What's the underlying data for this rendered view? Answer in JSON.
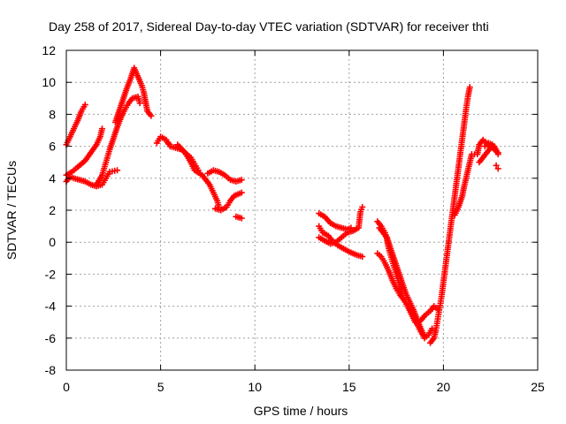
{
  "chart_data": {
    "type": "scatter",
    "title": "Day 258 of 2017, Sidereal Day-to-day VTEC variation (SDTVAR) for receiver thti",
    "xlabel": "GPS time / hours",
    "ylabel": "SDTVAR / TECUs",
    "xlim": [
      0,
      25
    ],
    "ylim": [
      -8,
      12
    ],
    "xticks": [
      "0",
      "5",
      "10",
      "15",
      "20",
      "25"
    ],
    "yticks": [
      "-8",
      "-6",
      "-4",
      "-2",
      "0",
      "2",
      "4",
      "6",
      "8",
      "10",
      "12"
    ],
    "grid": true,
    "marker": "+",
    "color": "#ff0000",
    "series": [
      {
        "points": [
          [
            0.0,
            6.1
          ],
          [
            0.2,
            6.6
          ],
          [
            0.4,
            7.1
          ],
          [
            0.6,
            7.6
          ],
          [
            0.8,
            8.2
          ],
          [
            1.0,
            8.6
          ],
          [
            0.0,
            4.2
          ],
          [
            0.3,
            4.4
          ],
          [
            0.6,
            4.7
          ],
          [
            1.0,
            5.1
          ],
          [
            1.3,
            5.6
          ],
          [
            1.6,
            6.1
          ],
          [
            1.8,
            6.6
          ],
          [
            1.9,
            7.1
          ],
          [
            0.0,
            3.8
          ],
          [
            0.2,
            4.1
          ],
          [
            0.4,
            4.0
          ],
          [
            0.7,
            3.9
          ],
          [
            1.0,
            3.8
          ],
          [
            1.3,
            3.6
          ],
          [
            1.6,
            3.5
          ],
          [
            1.9,
            3.6
          ],
          [
            2.1,
            4.0
          ],
          [
            2.3,
            4.4
          ],
          [
            2.7,
            4.5
          ],
          [
            1.6,
            3.6
          ],
          [
            1.9,
            4.2
          ],
          [
            2.1,
            5.0
          ],
          [
            2.3,
            5.8
          ],
          [
            2.5,
            6.5
          ],
          [
            2.7,
            7.2
          ],
          [
            2.9,
            7.8
          ],
          [
            3.1,
            8.3
          ],
          [
            3.3,
            8.7
          ],
          [
            3.5,
            9.0
          ],
          [
            3.8,
            9.1
          ],
          [
            3.9,
            8.7
          ],
          [
            2.6,
            7.5
          ],
          [
            2.8,
            8.2
          ],
          [
            3.0,
            8.9
          ],
          [
            3.2,
            9.6
          ],
          [
            3.4,
            10.2
          ],
          [
            3.6,
            10.9
          ],
          [
            4.0,
            9.8
          ],
          [
            4.1,
            9.4
          ],
          [
            4.2,
            8.8
          ],
          [
            4.3,
            8.2
          ],
          [
            4.5,
            7.9
          ],
          [
            4.8,
            6.2
          ],
          [
            5.0,
            6.6
          ],
          [
            5.3,
            6.4
          ],
          [
            5.5,
            6.0
          ],
          [
            5.8,
            5.9
          ],
          [
            6.1,
            5.8
          ],
          [
            6.4,
            5.5
          ],
          [
            6.6,
            5.3
          ],
          [
            6.8,
            4.9
          ],
          [
            7.0,
            4.5
          ],
          [
            5.4,
            6.2
          ],
          [
            5.9,
            6.1
          ],
          [
            6.3,
            5.6
          ],
          [
            6.6,
            5.0
          ],
          [
            6.8,
            4.5
          ],
          [
            7.2,
            4.2
          ],
          [
            7.4,
            3.9
          ],
          [
            7.6,
            3.6
          ],
          [
            7.8,
            3.1
          ],
          [
            8.0,
            2.6
          ],
          [
            8.1,
            2.2
          ],
          [
            7.5,
            4.3
          ],
          [
            7.8,
            4.5
          ],
          [
            8.1,
            4.4
          ],
          [
            8.4,
            4.2
          ],
          [
            8.7,
            3.9
          ],
          [
            9.0,
            3.8
          ],
          [
            9.3,
            3.9
          ],
          [
            7.9,
            2.1
          ],
          [
            8.2,
            2.0
          ],
          [
            8.5,
            2.2
          ],
          [
            8.7,
            2.6
          ],
          [
            8.9,
            2.9
          ],
          [
            9.1,
            3.0
          ],
          [
            9.3,
            3.1
          ],
          [
            9.0,
            1.6
          ],
          [
            9.3,
            1.5
          ],
          [
            13.4,
            1.8
          ],
          [
            13.7,
            1.6
          ],
          [
            14.0,
            1.2
          ],
          [
            14.3,
            1.0
          ],
          [
            14.6,
            0.9
          ],
          [
            14.9,
            0.8
          ],
          [
            15.1,
            0.9
          ],
          [
            13.4,
            1.0
          ],
          [
            13.6,
            0.6
          ],
          [
            13.9,
            0.4
          ],
          [
            14.1,
            0.1
          ],
          [
            14.4,
            -0.2
          ],
          [
            14.7,
            -0.4
          ],
          [
            15.0,
            -0.6
          ],
          [
            15.4,
            -0.8
          ],
          [
            15.7,
            -0.9
          ],
          [
            13.4,
            0.3
          ],
          [
            13.7,
            0.1
          ],
          [
            14.0,
            -0.1
          ],
          [
            14.3,
            0.0
          ],
          [
            14.6,
            0.3
          ],
          [
            14.9,
            0.6
          ],
          [
            15.2,
            0.7
          ],
          [
            15.5,
            0.9
          ],
          [
            15.6,
            1.9
          ],
          [
            15.7,
            2.2
          ],
          [
            16.5,
            1.3
          ],
          [
            16.7,
            1.0
          ],
          [
            16.9,
            0.6
          ],
          [
            17.0,
            0.2
          ],
          [
            17.1,
            -0.4
          ],
          [
            17.3,
            -1.2
          ],
          [
            17.5,
            -2.0
          ],
          [
            17.7,
            -2.8
          ],
          [
            17.9,
            -3.6
          ],
          [
            18.1,
            -4.0
          ],
          [
            18.3,
            -4.5
          ],
          [
            18.5,
            -5.0
          ],
          [
            16.6,
            0.9
          ],
          [
            16.8,
            0.6
          ],
          [
            17.0,
            0.3
          ],
          [
            17.2,
            -0.4
          ],
          [
            17.4,
            -1.1
          ],
          [
            17.6,
            -1.8
          ],
          [
            17.8,
            -2.5
          ],
          [
            18.0,
            -3.2
          ],
          [
            18.2,
            -3.7
          ],
          [
            18.4,
            -4.2
          ],
          [
            18.6,
            -4.8
          ],
          [
            18.8,
            -5.4
          ],
          [
            19.0,
            -5.9
          ],
          [
            16.5,
            -0.7
          ],
          [
            16.7,
            -0.9
          ],
          [
            16.9,
            -1.3
          ],
          [
            17.1,
            -1.8
          ],
          [
            17.3,
            -2.4
          ],
          [
            17.5,
            -2.9
          ],
          [
            17.7,
            -3.3
          ],
          [
            17.9,
            -3.6
          ],
          [
            18.1,
            -4.0
          ],
          [
            18.4,
            -4.6
          ],
          [
            18.6,
            -5.1
          ],
          [
            18.8,
            -5.6
          ],
          [
            19.0,
            -6.0
          ],
          [
            19.2,
            -5.8
          ],
          [
            19.4,
            -5.4
          ],
          [
            18.8,
            -4.9
          ],
          [
            19.0,
            -4.6
          ],
          [
            19.3,
            -4.3
          ],
          [
            19.5,
            -4.0
          ],
          [
            19.7,
            -4.2
          ],
          [
            19.3,
            -6.3
          ],
          [
            19.5,
            -6.0
          ],
          [
            19.6,
            -5.5
          ],
          [
            19.7,
            -4.8
          ],
          [
            19.8,
            -4.1
          ],
          [
            19.9,
            -3.4
          ],
          [
            20.0,
            -2.5
          ],
          [
            20.1,
            -1.6
          ],
          [
            20.2,
            -0.7
          ],
          [
            20.3,
            0.2
          ],
          [
            20.4,
            1.1
          ],
          [
            20.5,
            2.0
          ],
          [
            20.6,
            2.9
          ],
          [
            20.7,
            3.8
          ],
          [
            20.8,
            4.7
          ],
          [
            20.9,
            5.6
          ],
          [
            21.0,
            6.5
          ],
          [
            21.1,
            7.4
          ],
          [
            21.2,
            8.3
          ],
          [
            21.3,
            9.1
          ],
          [
            21.4,
            9.7
          ],
          [
            20.6,
            1.7
          ],
          [
            20.8,
            2.2
          ],
          [
            21.0,
            2.9
          ],
          [
            21.1,
            3.5
          ],
          [
            21.2,
            4.0
          ],
          [
            21.3,
            4.5
          ],
          [
            21.4,
            5.0
          ],
          [
            21.5,
            5.5
          ],
          [
            21.8,
            5.5
          ],
          [
            21.9,
            6.1
          ],
          [
            22.1,
            6.4
          ],
          [
            22.3,
            6.2
          ],
          [
            22.5,
            6.0
          ],
          [
            22.7,
            5.8
          ],
          [
            22.9,
            5.6
          ],
          [
            21.9,
            5.0
          ],
          [
            22.1,
            5.3
          ],
          [
            22.3,
            5.6
          ],
          [
            22.5,
            5.9
          ],
          [
            22.7,
            6.0
          ],
          [
            22.9,
            5.5
          ],
          [
            22.8,
            4.8
          ],
          [
            22.9,
            4.6
          ],
          [
            22.2,
            6.0
          ],
          [
            22.4,
            6.2
          ],
          [
            22.6,
            6.1
          ],
          [
            22.8,
            5.7
          ]
        ]
      }
    ]
  }
}
